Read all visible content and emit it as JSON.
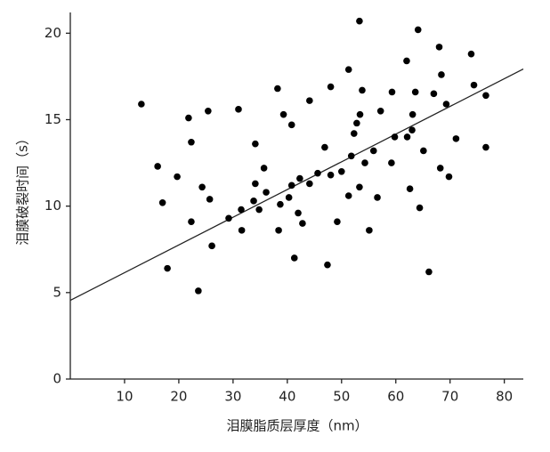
{
  "chart_data": {
    "type": "scatter",
    "x_label": "泪膜脂质层厚度（nm）",
    "y_label": "泪膜破裂时间（s）",
    "xlim": [
      0,
      83.5
    ],
    "ylim": [
      0,
      21.2
    ],
    "xticks": [
      10,
      20,
      30,
      40,
      50,
      60,
      70,
      80
    ],
    "yticks": [
      0,
      5,
      10,
      15,
      20
    ],
    "color": "#000000",
    "x": [
      13.1,
      16.1,
      17.0,
      17.9,
      19.7,
      21.8,
      22.3,
      22.3,
      23.6,
      24.3,
      25.4,
      25.7,
      26.1,
      29.2,
      31.0,
      31.5,
      31.6,
      33.8,
      34.1,
      34.1,
      34.8,
      35.7,
      36.1,
      38.2,
      38.4,
      38.7,
      39.3,
      40.3,
      40.8,
      40.8,
      41.3,
      42.0,
      42.3,
      42.8,
      44.1,
      44.1,
      45.6,
      46.9,
      47.4,
      48.0,
      48.0,
      49.2,
      50.0,
      51.3,
      51.3,
      51.8,
      52.3,
      52.8,
      53.3,
      53.3,
      53.4,
      53.8,
      54.3,
      55.1,
      55.9,
      56.6,
      57.2,
      59.2,
      59.3,
      59.8,
      62.0,
      62.1,
      62.6,
      63.0,
      63.1,
      63.6,
      64.1,
      64.4,
      65.1,
      66.1,
      67.0,
      68.0,
      68.4,
      68.2,
      69.3,
      69.8,
      71.1,
      73.9,
      74.4,
      76.6,
      76.6
    ],
    "values": [
      15.9,
      12.3,
      10.2,
      6.4,
      11.7,
      15.1,
      13.7,
      9.1,
      5.1,
      11.1,
      15.5,
      10.4,
      7.7,
      9.3,
      15.6,
      9.8,
      8.6,
      10.3,
      13.6,
      11.3,
      9.8,
      12.2,
      10.8,
      16.8,
      8.6,
      10.1,
      15.3,
      10.5,
      14.7,
      11.2,
      7.0,
      9.6,
      11.6,
      9.0,
      16.1,
      11.3,
      11.9,
      13.4,
      6.6,
      16.9,
      11.8,
      9.1,
      12.0,
      17.9,
      10.6,
      12.9,
      14.2,
      14.8,
      20.7,
      11.1,
      15.3,
      16.7,
      12.5,
      8.6,
      13.2,
      10.5,
      15.5,
      12.5,
      16.6,
      14.0,
      18.4,
      14.0,
      11.0,
      14.4,
      15.3,
      16.6,
      20.2,
      9.9,
      13.2,
      6.2,
      16.5,
      19.2,
      17.6,
      12.2,
      15.9,
      11.7,
      13.9,
      18.8,
      17.0,
      16.4,
      13.4
    ],
    "trendline": {
      "x": [
        0,
        83.5
      ],
      "y": [
        4.55,
        17.93
      ]
    }
  }
}
